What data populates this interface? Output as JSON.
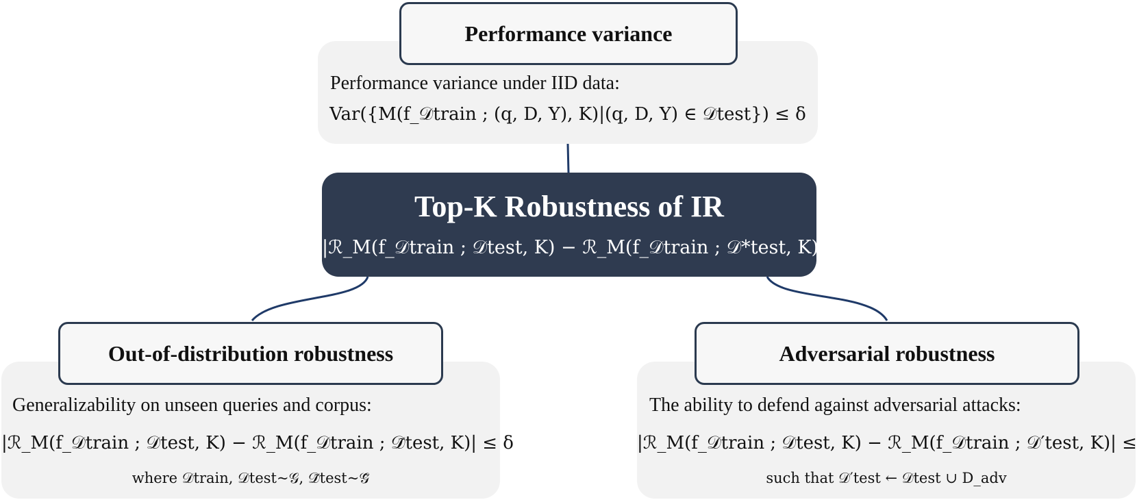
{
  "center": {
    "title": "Top-K Robustness of  IR",
    "formula": "|ℛ_M(f_𝒟train ; 𝒟test, K) − ℛ_M(f_𝒟train ; 𝒟*test, K)| ≤ δ"
  },
  "performance_variance": {
    "title": "Performance variance",
    "description": "Performance variance under IID data:",
    "formula": "Var({M(f_𝒟train ; (q, D, Y), K)|(q, D, Y) ∈ 𝒟test}) ≤ δ"
  },
  "ood_robustness": {
    "title": "Out-of-distribution robustness",
    "description": "Generalizability on unseen queries and corpus:",
    "formula": "|ℛ_M(f_𝒟train ; 𝒟test, K) − ℛ_M(f_𝒟train ; 𝒟̃test, K)| ≤ δ",
    "note": "where 𝒟train, 𝒟test~𝒢, 𝒟̃test~𝒢̃"
  },
  "adversarial_robustness": {
    "title": "Adversarial robustness",
    "description": "The ability to defend against adversarial attacks:",
    "formula": "|ℛ_M(f_𝒟train ; 𝒟test, K) − ℛ_M(f_𝒟train ; 𝒟′test, K)| ≤ δ",
    "note": "such that 𝒟′test ← 𝒟test ∪ D_adv"
  },
  "colors": {
    "dark_navy": "#2f3b50",
    "border": "#2b3a4f",
    "panel": "#f2f2f2",
    "connector": "#1f3a68"
  }
}
